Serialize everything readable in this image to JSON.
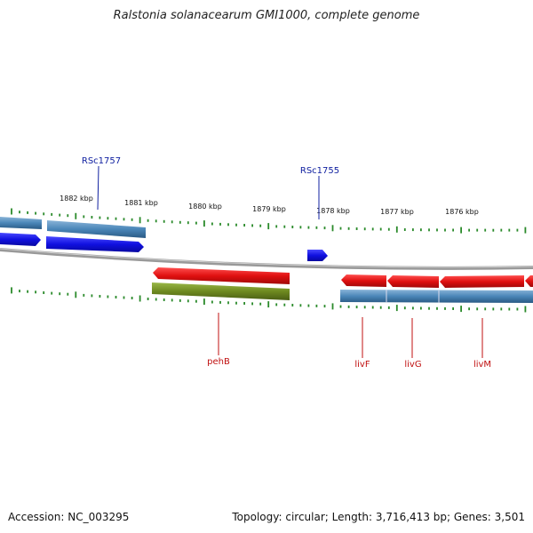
{
  "title": "Ralstonia solanacearum GMI1000, complete genome",
  "footer": {
    "accession": "Accession: NC_003295",
    "summary": "Topology: circular; Length: 3,716,413 bp; Genes: 3,501"
  },
  "ticks": [
    {
      "label": "1882 kbp"
    },
    {
      "label": "1881 kbp"
    },
    {
      "label": "1880 kbp"
    },
    {
      "label": "1879 kbp"
    },
    {
      "label": "1878 kbp"
    },
    {
      "label": "1877 kbp"
    },
    {
      "label": "1876 kbp"
    }
  ],
  "gene_labels": [
    {
      "name": "RSc1757",
      "strand": "forward"
    },
    {
      "name": "RSc1755",
      "strand": "forward"
    },
    {
      "name": "pehB",
      "strand": "reverse"
    },
    {
      "name": "livF",
      "strand": "reverse"
    },
    {
      "name": "livG",
      "strand": "reverse"
    },
    {
      "name": "livM",
      "strand": "reverse"
    }
  ],
  "colors": {
    "forward_gene": "#1010e0",
    "reverse_gene": "#e01010",
    "cds_bar": "#4a86b8",
    "other_feature": "#6e8a20",
    "backbone": "#888888",
    "tick": "#2a8a2a",
    "label_blue": "#1020a0",
    "label_red": "#c01010"
  }
}
